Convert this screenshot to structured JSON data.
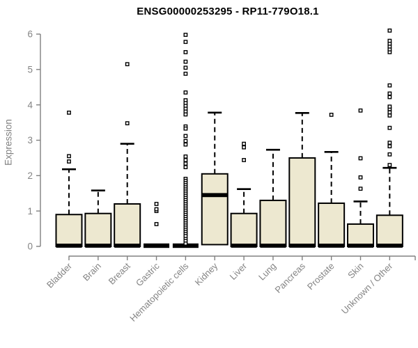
{
  "chart_data": {
    "type": "boxplot",
    "title": "ENSG00000253295 - RP11-779O18.1",
    "ylabel": "Expression",
    "xlabel": "",
    "ylim": [
      0,
      6
    ],
    "yticks": [
      0,
      1,
      2,
      3,
      4,
      5,
      6
    ],
    "grid": false,
    "legend": null,
    "categories": [
      "Bladder",
      "Brain",
      "Breast",
      "Gastric",
      "Hematopoietic cells",
      "Kidney",
      "Liver",
      "Lung",
      "Pancreas",
      "Prostate",
      "Skin",
      "Unknown / Other"
    ],
    "boxes": [
      {
        "category": "Bladder",
        "q1": 0,
        "median": 0.02,
        "q3": 0.9,
        "whisker_low": 0,
        "whisker_high": 2.18,
        "outliers": [
          2.4,
          2.55,
          3.78
        ]
      },
      {
        "category": "Brain",
        "q1": 0,
        "median": 0.02,
        "q3": 0.93,
        "whisker_low": 0,
        "whisker_high": 1.58,
        "outliers": []
      },
      {
        "category": "Breast",
        "q1": 0,
        "median": 0.02,
        "q3": 1.2,
        "whisker_low": 0,
        "whisker_high": 2.9,
        "outliers": [
          3.48,
          5.15
        ]
      },
      {
        "category": "Gastric",
        "q1": 0,
        "median": 0.02,
        "q3": 0.03,
        "whisker_low": 0,
        "whisker_high": 0.03,
        "outliers": [
          0.63,
          1.0,
          1.05,
          1.2
        ]
      },
      {
        "category": "Hematopoietic cells",
        "q1": 0,
        "median": 0.02,
        "q3": 0.03,
        "whisker_low": 0,
        "whisker_high": 0.03,
        "outliers": [
          5.98,
          5.78,
          5.49,
          5.22,
          5.05,
          4.88,
          4.35,
          4.13,
          4.05,
          3.97,
          3.89,
          3.81,
          3.73,
          3.39,
          3.33,
          3.12,
          2.98,
          2.88,
          2.54,
          2.44,
          2.34,
          2.24,
          1.91,
          1.85,
          1.79,
          1.73,
          1.67,
          1.61,
          1.55,
          1.49,
          1.43,
          1.37,
          1.31,
          1.25,
          1.19,
          1.13,
          1.07,
          1.01,
          0.95,
          0.89,
          0.83,
          0.77,
          0.71,
          0.65,
          0.59,
          0.53,
          0.47,
          0.41,
          0.35,
          0.29,
          0.21,
          0.15,
          0.08
        ]
      },
      {
        "category": "Kidney",
        "q1": 0.05,
        "median": 1.45,
        "q3": 2.05,
        "whisker_low": 0.05,
        "whisker_high": 3.78,
        "outliers": []
      },
      {
        "category": "Liver",
        "q1": 0,
        "median": 0.02,
        "q3": 0.93,
        "whisker_low": 0,
        "whisker_high": 1.62,
        "outliers": [
          2.44,
          2.8,
          2.9
        ]
      },
      {
        "category": "Lung",
        "q1": 0,
        "median": 0.02,
        "q3": 1.3,
        "whisker_low": 0,
        "whisker_high": 2.73,
        "outliers": []
      },
      {
        "category": "Pancreas",
        "q1": 0,
        "median": 0.02,
        "q3": 2.5,
        "whisker_low": 0,
        "whisker_high": 3.77,
        "outliers": []
      },
      {
        "category": "Prostate",
        "q1": 0,
        "median": 0.02,
        "q3": 1.22,
        "whisker_low": 0,
        "whisker_high": 2.67,
        "outliers": [
          3.72
        ]
      },
      {
        "category": "Skin",
        "q1": 0,
        "median": 0.02,
        "q3": 0.63,
        "whisker_low": 0,
        "whisker_high": 1.27,
        "outliers": [
          1.63,
          1.95,
          2.49,
          3.84
        ]
      },
      {
        "category": "Unknown / Other",
        "q1": 0,
        "median": 0.02,
        "q3": 0.88,
        "whisker_low": 0,
        "whisker_high": 2.22,
        "outliers": [
          2.3,
          2.6,
          2.83,
          2.93,
          3.35,
          3.7,
          3.79,
          3.88,
          3.95,
          4.22,
          4.32,
          4.55,
          5.49,
          5.57,
          5.65,
          5.73,
          5.81,
          6.1
        ]
      }
    ],
    "colors": {
      "box_fill": "#EDE8D0",
      "box_border": "#000000",
      "median": "#000000",
      "whisker": "#000000",
      "outlier_stroke": "#000000",
      "outlier_fill": "#ffffff",
      "axis": "#808080",
      "tick_label": "#848484",
      "title": "#000000",
      "background": "#ffffff"
    }
  }
}
